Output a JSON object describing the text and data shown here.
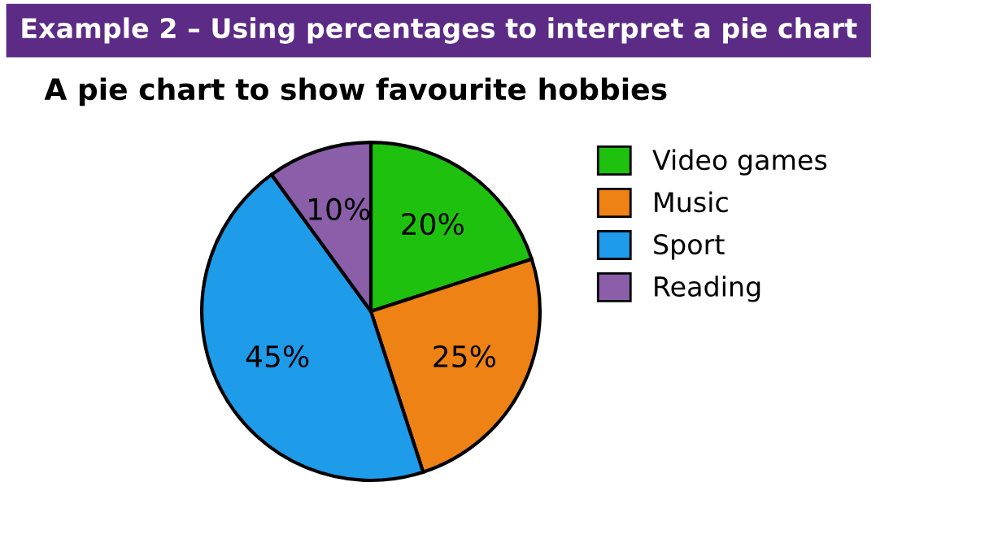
{
  "chart_data": {
    "type": "pie",
    "title": "A pie chart to show favourite hobbies",
    "annotations": [
      "Example 2 – Using percentages to interpret a pie chart"
    ],
    "categories": [
      "Video games",
      "Music",
      "Sport",
      "Reading"
    ],
    "values": [
      20,
      25,
      45,
      10
    ],
    "colors": [
      "#1fc10f",
      "#ee8214",
      "#1e9be9",
      "#8b5ea9"
    ],
    "value_labels": [
      "20%",
      "25%",
      "45%",
      "10%"
    ],
    "legend": "right"
  }
}
